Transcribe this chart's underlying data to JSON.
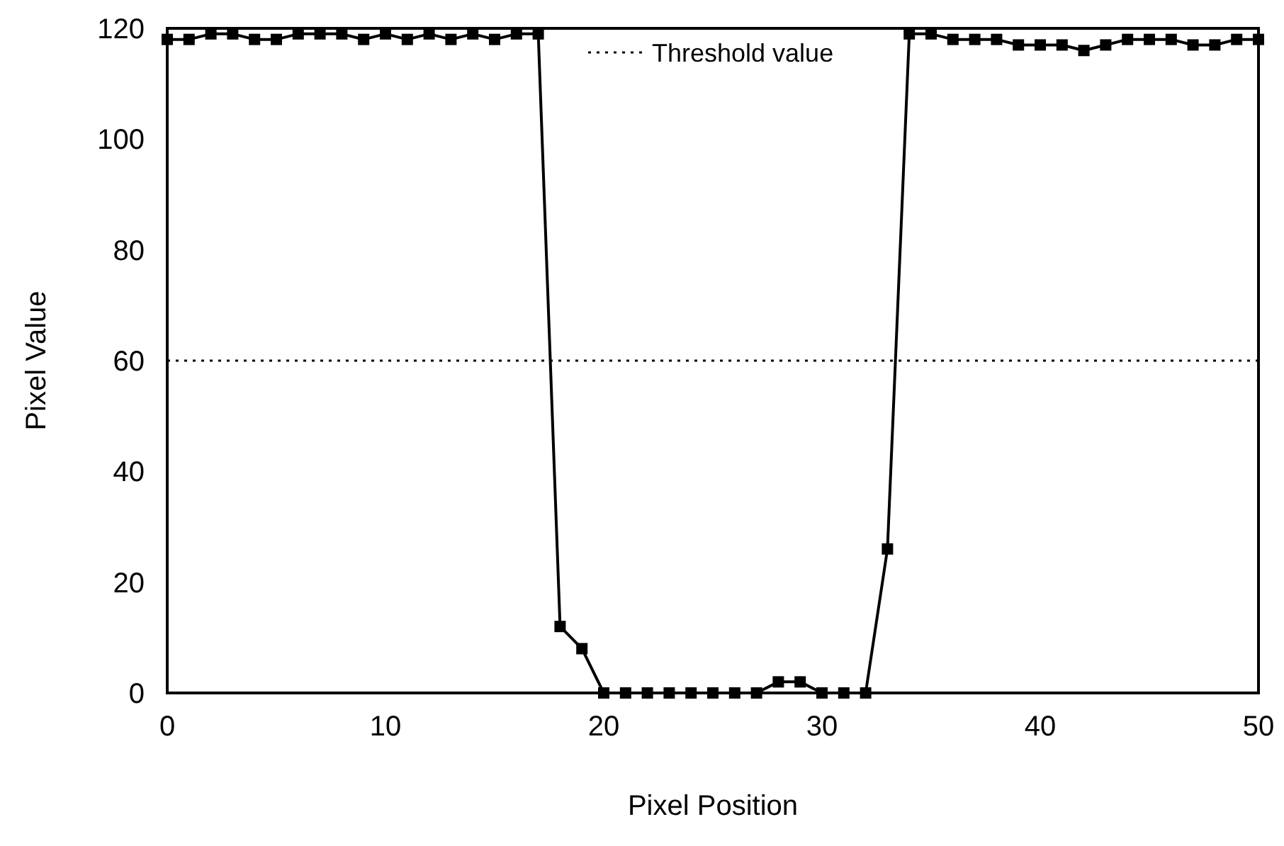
{
  "chart_data": {
    "type": "line",
    "xlabel": "Pixel Position",
    "ylabel": "Pixel Value",
    "x": [
      0,
      1,
      2,
      3,
      4,
      5,
      6,
      7,
      8,
      9,
      10,
      11,
      12,
      13,
      14,
      15,
      16,
      17,
      18,
      19,
      20,
      21,
      22,
      23,
      24,
      25,
      26,
      27,
      28,
      29,
      30,
      31,
      32,
      33,
      34,
      35,
      36,
      37,
      38,
      39,
      40,
      41,
      42,
      43,
      44,
      45,
      46,
      47,
      48,
      49,
      50
    ],
    "series": [
      {
        "color": "#000000",
        "values": [
          118,
          118,
          119,
          119,
          118,
          118,
          119,
          119,
          119,
          118,
          119,
          118,
          119,
          118,
          119,
          118,
          119,
          119,
          12,
          8,
          0,
          0,
          0,
          0,
          0,
          0,
          0,
          0,
          2,
          2,
          0,
          0,
          0,
          26,
          119,
          119,
          118,
          118,
          118,
          117,
          117,
          117,
          116,
          117,
          118,
          118,
          118,
          117,
          117,
          118,
          118
        ]
      }
    ],
    "xlim": [
      0,
      50
    ],
    "ylim": [
      0,
      120
    ],
    "xticks": [
      0,
      10,
      20,
      30,
      40,
      50
    ],
    "yticks": [
      0,
      20,
      40,
      60,
      80,
      100,
      120
    ],
    "ref_lines": [
      {
        "axis": "y",
        "value": 60,
        "label": "Threshold value",
        "color": "#000000",
        "line_style": "dotted"
      }
    ],
    "marker": "square",
    "line_style": "solid",
    "grid": false
  }
}
